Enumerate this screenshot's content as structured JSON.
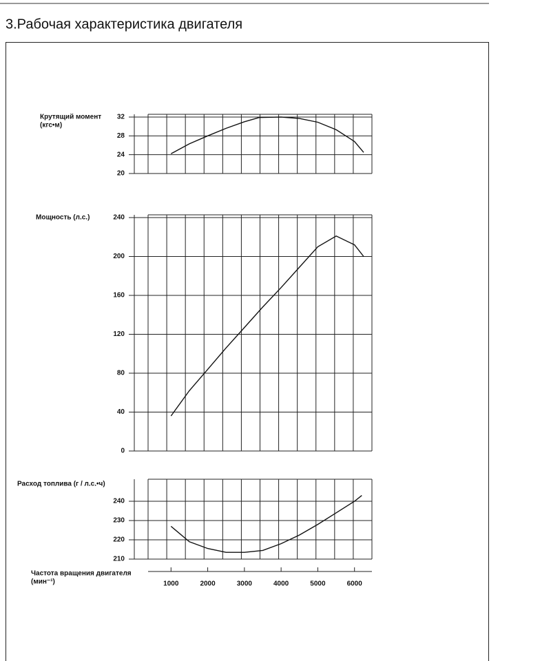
{
  "title": "3.Рабочая характеристика двигателя",
  "chart_data": [
    {
      "type": "line",
      "ylabel": [
        "Крутящий момент",
        "(кгс•м)"
      ],
      "x": [
        1000,
        1500,
        2000,
        2500,
        3000,
        3400,
        4000,
        4500,
        5000,
        5500,
        6000,
        6250
      ],
      "values": [
        24.2,
        26.3,
        28,
        29.6,
        31,
        31.9,
        32,
        31.7,
        30.9,
        29.3,
        26.8,
        24.5
      ],
      "color": "#111111",
      "xlim": [
        375,
        6475
      ],
      "ylim": [
        20,
        32
      ],
      "yticks": [
        20,
        24,
        28,
        32
      ],
      "grid": true
    },
    {
      "type": "line",
      "ylabel": [
        "Мощность (л.с.)"
      ],
      "x": [
        1000,
        1500,
        2000,
        2500,
        3000,
        3500,
        4000,
        4500,
        5000,
        5500,
        6000,
        6250
      ],
      "values": [
        36,
        62,
        84,
        106,
        127,
        148,
        168,
        189,
        210,
        221,
        212,
        200
      ],
      "color": "#111111",
      "xlim": [
        375,
        6475
      ],
      "ylim": [
        0,
        240
      ],
      "yticks": [
        0,
        40,
        80,
        120,
        160,
        200,
        240
      ],
      "grid": true
    },
    {
      "type": "line",
      "ylabel": [
        "Расход топлива (г / л.с.•ч)"
      ],
      "x": [
        1000,
        1500,
        2000,
        2500,
        3000,
        3500,
        4000,
        4500,
        5000,
        5500,
        6000,
        6200
      ],
      "values": [
        227,
        219,
        215.5,
        213.5,
        213.5,
        214.5,
        218,
        222.5,
        228,
        234,
        240,
        243
      ],
      "color": "#111111",
      "xlim": [
        375,
        6475
      ],
      "ylim": [
        210,
        250
      ],
      "yticks": [
        210,
        220,
        230,
        240
      ],
      "grid": true,
      "xlabel": [
        "Частота вращения двигателя",
        "(мин⁻¹)"
      ],
      "xticks": [
        1000,
        2000,
        3000,
        4000,
        5000,
        6000
      ]
    }
  ]
}
